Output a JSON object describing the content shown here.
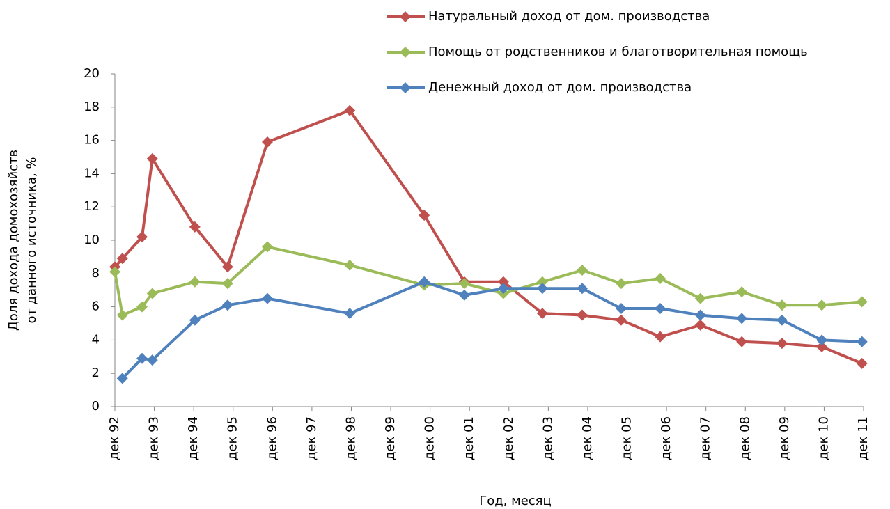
{
  "chart_data": {
    "type": "line",
    "ylabel": [
      "Доля дохода домохозяйств",
      "от данного источника, %"
    ],
    "xlabel": "Год, месяц",
    "x": [
      1992,
      1992.19,
      1992.69,
      1992.95,
      1994.03,
      1994.86,
      1995.87,
      1997.96,
      1999.85,
      2000.87,
      2001.86,
      2002.85,
      2003.86,
      2004.85,
      2005.84,
      2006.86,
      2007.91,
      2008.93,
      2009.94,
      2010.96
    ],
    "series": [
      {
        "name": "Натуральный доход от дом. производства",
        "color": "#c0504d",
        "values": [
          8.4,
          8.9,
          10.2,
          14.9,
          10.8,
          8.4,
          15.9,
          17.8,
          11.5,
          7.5,
          7.5,
          5.6,
          5.5,
          5.2,
          4.2,
          4.9,
          3.9,
          3.8,
          3.6,
          2.6
        ]
      },
      {
        "name": "Помощь от родственников и благотворительная помощь",
        "color": "#9bbb59",
        "values": [
          8.1,
          5.5,
          6.0,
          6.8,
          7.5,
          7.4,
          9.6,
          8.5,
          7.3,
          7.4,
          6.8,
          7.5,
          8.2,
          7.4,
          7.7,
          6.5,
          6.9,
          6.1,
          6.1,
          6.3
        ]
      },
      {
        "name": "Денежный доход от дом. производства",
        "color": "#4f81bd",
        "values": [
          null,
          1.7,
          2.9,
          2.8,
          5.2,
          6.1,
          6.5,
          5.6,
          7.5,
          6.7,
          7.1,
          7.1,
          7.1,
          5.9,
          5.9,
          5.5,
          5.3,
          5.2,
          4.0,
          3.9
        ]
      }
    ],
    "xlim": [
      1992,
      2011
    ],
    "xticks": [
      {
        "value": 1992,
        "label": "дек 92"
      },
      {
        "value": 1993,
        "label": "дек 93"
      },
      {
        "value": 1994,
        "label": "дек 94"
      },
      {
        "value": 1995,
        "label": "дек 95"
      },
      {
        "value": 1996,
        "label": "дек 96"
      },
      {
        "value": 1997,
        "label": "дек 97"
      },
      {
        "value": 1998,
        "label": "дек 98"
      },
      {
        "value": 1999,
        "label": "дек 99"
      },
      {
        "value": 2000,
        "label": "дек 00"
      },
      {
        "value": 2001,
        "label": "дек 01"
      },
      {
        "value": 2002,
        "label": "дек 02"
      },
      {
        "value": 2003,
        "label": "дек 03"
      },
      {
        "value": 2004,
        "label": "дек 04"
      },
      {
        "value": 2005,
        "label": "дек 05"
      },
      {
        "value": 2006,
        "label": "дек 06"
      },
      {
        "value": 2007,
        "label": "дек 07"
      },
      {
        "value": 2008,
        "label": "дек 08"
      },
      {
        "value": 2009,
        "label": "дек 09"
      },
      {
        "value": 2010,
        "label": "дек 10"
      },
      {
        "value": 2011,
        "label": "дек 11"
      }
    ],
    "ylim": [
      0,
      20
    ],
    "yticks": [
      0,
      2,
      4,
      6,
      8,
      10,
      12,
      14,
      16,
      18,
      20
    ],
    "grid": false,
    "legend": "top"
  }
}
